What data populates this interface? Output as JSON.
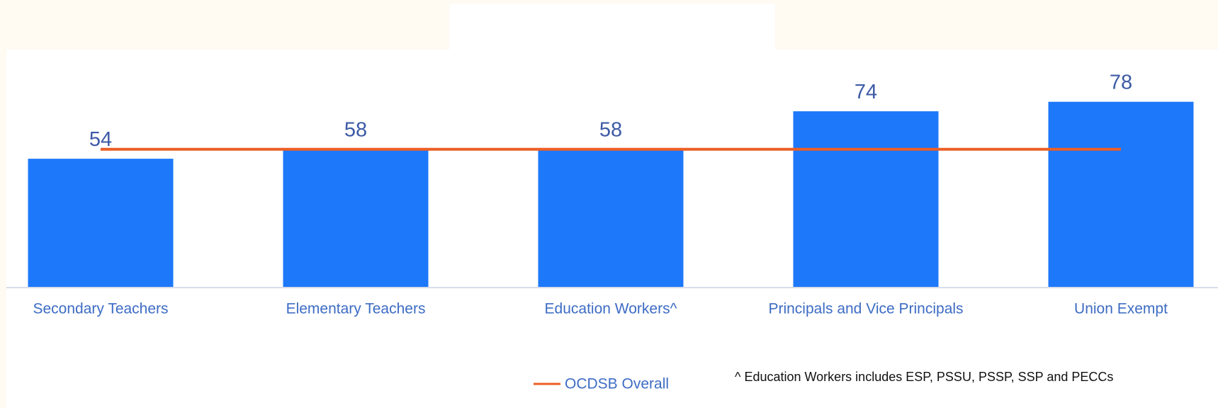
{
  "chart_data": {
    "type": "bar",
    "categories": [
      "Secondary Teachers",
      "Elementary Teachers",
      "Education Workers^",
      "Principals and Vice Principals",
      "Union Exempt"
    ],
    "series": [
      {
        "type": "bar",
        "color": "#1e78fa",
        "values": [
          54,
          58,
          58,
          74,
          78
        ]
      },
      {
        "type": "line",
        "name": "OCDSB Overall",
        "color": "#ec5f24",
        "values": [
          58,
          58,
          58,
          58,
          58
        ]
      }
    ],
    "ylim": [
      0,
      100
    ],
    "note": "^ Education Workers includes ESP, PSSU, PSSP, SSP and PECCs"
  }
}
